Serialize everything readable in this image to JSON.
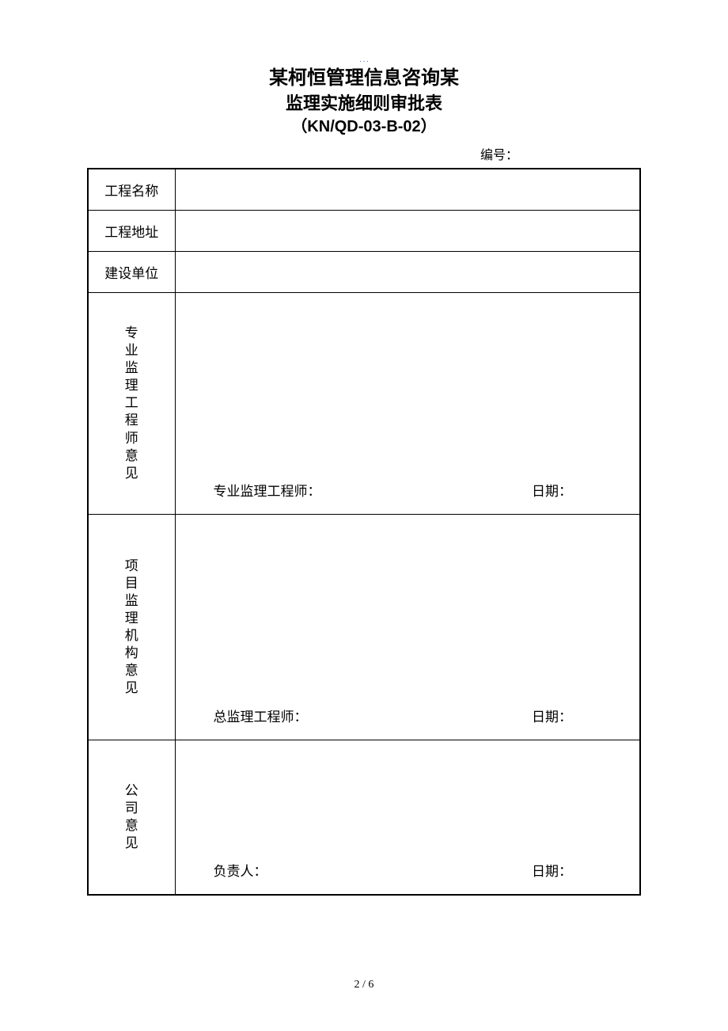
{
  "header": {
    "top_mark": ". . .",
    "title_line_1": "某柯恒管理信息咨询某",
    "title_line_2": "监理实施细则审批表",
    "title_line_3": "（KN/QD-03-B-02）",
    "doc_number_label": "编号："
  },
  "rows": {
    "project_name": "工程名称",
    "project_address": "工程地址",
    "construction_unit": "建设单位"
  },
  "opinions": {
    "engineer": {
      "label": "专业监理工程师意见",
      "signer": "专业监理工程师：",
      "date": "日期："
    },
    "org": {
      "label": "项目监理机构意见",
      "signer": "总监理工程师：",
      "date": "日期："
    },
    "company": {
      "label": "公司意见",
      "signer": "负责人：",
      "date": "日期："
    }
  },
  "footer": {
    "page": "2 / 6"
  }
}
